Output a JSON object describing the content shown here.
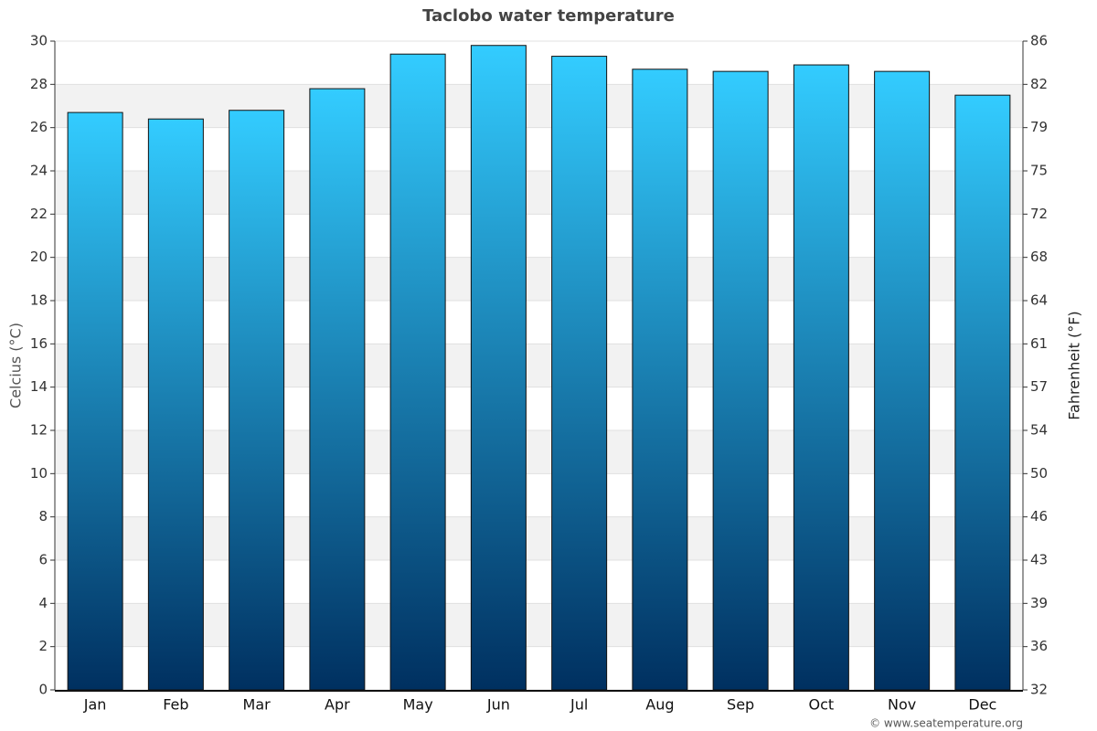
{
  "chart_data": {
    "type": "bar",
    "title": "Taclobo water temperature",
    "categories": [
      "Jan",
      "Feb",
      "Mar",
      "Apr",
      "May",
      "Jun",
      "Jul",
      "Aug",
      "Sep",
      "Oct",
      "Nov",
      "Dec"
    ],
    "values": [
      26.7,
      26.4,
      26.8,
      27.8,
      29.4,
      29.8,
      29.3,
      28.7,
      28.6,
      28.9,
      28.6,
      27.5
    ],
    "color_top": "#33ccff",
    "color_bottom": "#003060",
    "y_label": "Celcius (°C)",
    "y2_label": "Fahrenheit (°F)",
    "ylim": [
      0,
      30
    ],
    "yticks": [
      0,
      2,
      4,
      6,
      8,
      10,
      12,
      14,
      16,
      18,
      20,
      22,
      24,
      26,
      28,
      30
    ],
    "y2lim": [
      32,
      86
    ],
    "y2ticks": [
      32,
      {
        "value": 35.6,
        "label": "36"
      },
      {
        "value": 39.2,
        "label": "39"
      },
      {
        "value": 42.8,
        "label": "43"
      },
      {
        "value": 46.4,
        "label": "46"
      },
      50,
      {
        "value": 53.6,
        "label": "54"
      },
      {
        "value": 57.2,
        "label": "57"
      },
      {
        "value": 60.8,
        "label": "61"
      },
      {
        "value": 64.4,
        "label": "64"
      },
      68,
      {
        "value": 71.6,
        "label": "72"
      },
      {
        "value": 75.2,
        "label": "75"
      },
      {
        "value": 78.8,
        "label": "79"
      },
      {
        "value": 82.4,
        "label": "82"
      },
      86
    ],
    "grid": true,
    "credit": "© www.seatemperature.org"
  }
}
